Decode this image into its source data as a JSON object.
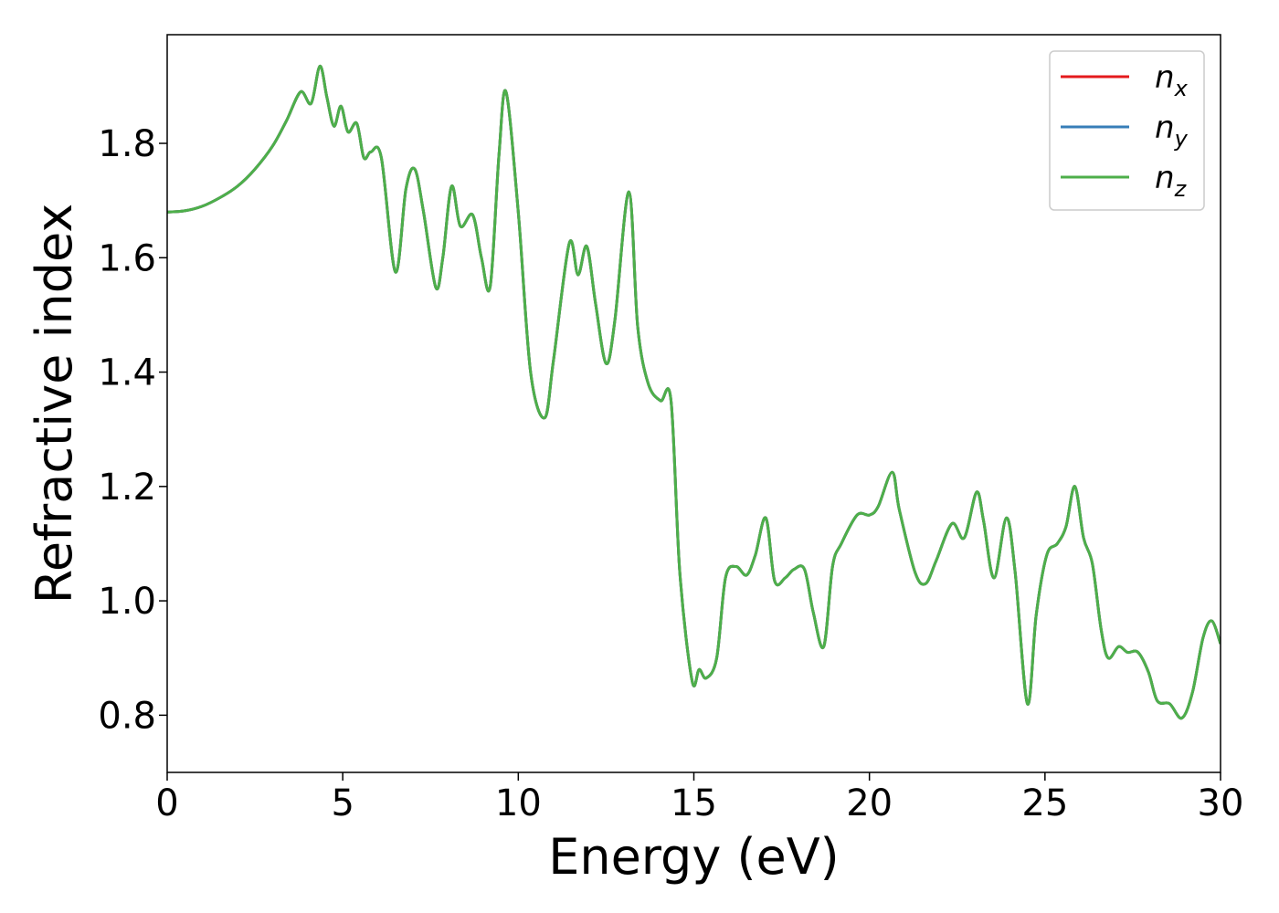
{
  "chart_data": {
    "type": "line",
    "xlabel": "Energy (eV)",
    "ylabel": "Refractive index",
    "xlim": [
      0,
      30
    ],
    "ylim": [
      0.7,
      1.99
    ],
    "xticks": [
      0,
      5,
      10,
      15,
      20,
      25,
      30
    ],
    "xtick_labels": [
      "0",
      "5",
      "10",
      "15",
      "20",
      "25",
      "30"
    ],
    "yticks": [
      0.8,
      1.0,
      1.2,
      1.4,
      1.6,
      1.8
    ],
    "ytick_labels": [
      "0.8",
      "1.0",
      "1.2",
      "1.4",
      "1.6",
      "1.8"
    ],
    "grid": false,
    "legend_position": "top-right",
    "x": [
      0,
      0.5,
      1,
      1.5,
      2,
      2.5,
      3,
      3.4,
      3.8,
      4.1,
      4.35,
      4.55,
      4.75,
      4.95,
      5.15,
      5.4,
      5.6,
      5.8,
      6.1,
      6.5,
      6.8,
      7.05,
      7.3,
      7.65,
      7.85,
      8.1,
      8.35,
      8.7,
      8.95,
      9.2,
      9.45,
      9.65,
      10.0,
      10.35,
      10.75,
      11.0,
      11.45,
      11.7,
      11.95,
      12.2,
      12.5,
      12.75,
      13.15,
      13.4,
      13.7,
      14.05,
      14.35,
      14.6,
      14.95,
      15.15,
      15.35,
      15.65,
      15.9,
      16.2,
      16.5,
      16.75,
      17.05,
      17.3,
      17.6,
      17.85,
      18.15,
      18.4,
      18.7,
      18.95,
      19.2,
      19.65,
      20.0,
      20.25,
      20.65,
      20.85,
      21.3,
      21.6,
      21.9,
      22.35,
      22.7,
      23.05,
      23.25,
      23.55,
      23.9,
      24.15,
      24.5,
      24.75,
      25.05,
      25.35,
      25.6,
      25.85,
      26.1,
      26.35,
      26.6,
      26.8,
      27.1,
      27.35,
      27.65,
      27.95,
      28.2,
      28.55,
      28.9,
      29.2,
      29.5,
      29.75,
      30.0
    ],
    "series": [
      {
        "name": "n_x",
        "color": "#e41a1c",
        "values": [
          1.68,
          1.682,
          1.69,
          1.705,
          1.725,
          1.755,
          1.795,
          1.84,
          1.89,
          1.87,
          1.935,
          1.88,
          1.83,
          1.865,
          1.82,
          1.835,
          1.775,
          1.785,
          1.775,
          1.575,
          1.72,
          1.755,
          1.68,
          1.548,
          1.6,
          1.725,
          1.655,
          1.675,
          1.6,
          1.55,
          1.78,
          1.89,
          1.68,
          1.4,
          1.32,
          1.42,
          1.625,
          1.57,
          1.62,
          1.52,
          1.415,
          1.49,
          1.715,
          1.48,
          1.38,
          1.35,
          1.35,
          1.05,
          0.86,
          0.88,
          0.865,
          0.9,
          1.04,
          1.06,
          1.045,
          1.08,
          1.145,
          1.035,
          1.04,
          1.055,
          1.055,
          0.98,
          0.92,
          1.06,
          1.1,
          1.15,
          1.15,
          1.165,
          1.225,
          1.16,
          1.05,
          1.03,
          1.07,
          1.135,
          1.11,
          1.19,
          1.14,
          1.04,
          1.145,
          1.05,
          0.82,
          0.975,
          1.08,
          1.1,
          1.13,
          1.2,
          1.11,
          1.065,
          0.95,
          0.9,
          0.92,
          0.91,
          0.91,
          0.875,
          0.825,
          0.82,
          0.795,
          0.84,
          0.935,
          0.965,
          0.925
        ]
      },
      {
        "name": "n_y",
        "color": "#377eb8",
        "values": [
          1.68,
          1.682,
          1.69,
          1.705,
          1.725,
          1.755,
          1.795,
          1.84,
          1.89,
          1.87,
          1.935,
          1.88,
          1.83,
          1.865,
          1.82,
          1.835,
          1.775,
          1.785,
          1.775,
          1.575,
          1.72,
          1.755,
          1.68,
          1.548,
          1.6,
          1.725,
          1.655,
          1.675,
          1.6,
          1.55,
          1.78,
          1.89,
          1.68,
          1.4,
          1.32,
          1.42,
          1.625,
          1.57,
          1.62,
          1.52,
          1.415,
          1.49,
          1.715,
          1.48,
          1.38,
          1.35,
          1.35,
          1.05,
          0.86,
          0.88,
          0.865,
          0.9,
          1.04,
          1.06,
          1.045,
          1.08,
          1.145,
          1.035,
          1.04,
          1.055,
          1.055,
          0.98,
          0.92,
          1.06,
          1.1,
          1.15,
          1.15,
          1.165,
          1.225,
          1.16,
          1.05,
          1.03,
          1.07,
          1.135,
          1.11,
          1.19,
          1.14,
          1.04,
          1.145,
          1.05,
          0.82,
          0.975,
          1.08,
          1.1,
          1.13,
          1.2,
          1.11,
          1.065,
          0.95,
          0.9,
          0.92,
          0.91,
          0.91,
          0.875,
          0.825,
          0.82,
          0.795,
          0.84,
          0.935,
          0.965,
          0.925
        ]
      },
      {
        "name": "n_z",
        "color": "#4daf4a",
        "values": [
          1.68,
          1.682,
          1.69,
          1.705,
          1.725,
          1.755,
          1.795,
          1.84,
          1.89,
          1.87,
          1.935,
          1.88,
          1.83,
          1.865,
          1.82,
          1.835,
          1.775,
          1.785,
          1.775,
          1.575,
          1.72,
          1.755,
          1.68,
          1.548,
          1.6,
          1.725,
          1.655,
          1.675,
          1.6,
          1.55,
          1.78,
          1.89,
          1.68,
          1.4,
          1.32,
          1.42,
          1.625,
          1.57,
          1.62,
          1.52,
          1.415,
          1.49,
          1.715,
          1.48,
          1.38,
          1.35,
          1.35,
          1.05,
          0.86,
          0.88,
          0.865,
          0.9,
          1.04,
          1.06,
          1.045,
          1.08,
          1.145,
          1.035,
          1.04,
          1.055,
          1.055,
          0.98,
          0.92,
          1.06,
          1.1,
          1.15,
          1.15,
          1.165,
          1.225,
          1.16,
          1.05,
          1.03,
          1.07,
          1.135,
          1.11,
          1.19,
          1.14,
          1.04,
          1.145,
          1.05,
          0.82,
          0.975,
          1.08,
          1.1,
          1.13,
          1.2,
          1.11,
          1.065,
          0.95,
          0.9,
          0.92,
          0.91,
          0.91,
          0.875,
          0.825,
          0.82,
          0.795,
          0.84,
          0.935,
          0.965,
          0.925
        ]
      }
    ],
    "legend": [
      {
        "base": "n",
        "sub": "x",
        "color": "#e41a1c"
      },
      {
        "base": "n",
        "sub": "y",
        "color": "#377eb8"
      },
      {
        "base": "n",
        "sub": "z",
        "color": "#4daf4a"
      }
    ]
  }
}
